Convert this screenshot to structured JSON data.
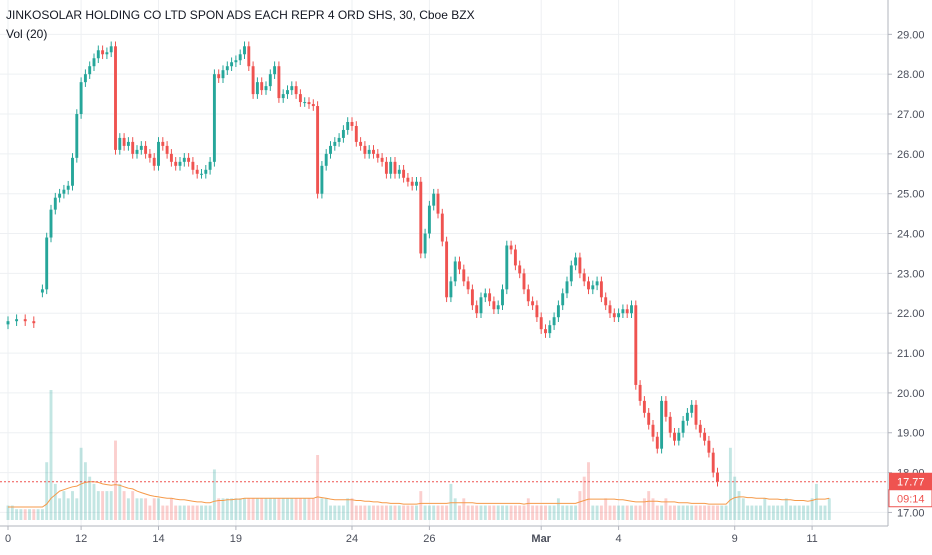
{
  "chart_data": {
    "type": "candlestick",
    "title": "JINKOSOLAR HOLDING CO LTD SPON ADS EACH REPR 4 ORD SHS, 30, Cboe BZX",
    "indicator_label": "Vol (20)",
    "colors": {
      "up": "#26a69a",
      "down": "#ef5350",
      "ma": "#f59a4a",
      "current_price_line": "#ef5350"
    },
    "ylim": [
      16.85,
      29.35
    ],
    "y_ticks": [
      "17.00",
      "18.00",
      "19.00",
      "20.00",
      "21.00",
      "22.00",
      "23.00",
      "24.00",
      "25.00",
      "26.00",
      "27.00",
      "28.00",
      "29.00"
    ],
    "x_ticks": [
      {
        "label": "0",
        "bar": 0
      },
      {
        "label": "12",
        "bar": 17
      },
      {
        "label": "14",
        "bar": 35
      },
      {
        "label": "19",
        "bar": 53
      },
      {
        "label": "24",
        "bar": 80
      },
      {
        "label": "26",
        "bar": 98
      },
      {
        "label": "Mar",
        "bar": 124
      },
      {
        "label": "4",
        "bar": 142
      },
      {
        "label": "9",
        "bar": 169
      },
      {
        "label": "11",
        "bar": 187
      }
    ],
    "current_price_label": "17.77",
    "current_price_value": 17.77,
    "countdown_label": "09:14",
    "series": [
      {
        "segment": 1,
        "points": [
          [
            0,
            21.8
          ],
          [
            2,
            21.85
          ],
          [
            4,
            21.8
          ],
          [
            6,
            21.75
          ]
        ]
      },
      {
        "segment": 2,
        "points": [
          [
            8,
            22.6
          ],
          [
            9,
            23.9
          ],
          [
            10,
            24.6
          ],
          [
            11,
            24.9
          ],
          [
            12,
            25.0
          ],
          [
            13,
            25.1
          ],
          [
            14,
            25.2
          ],
          [
            15,
            25.9
          ],
          [
            16,
            27.0
          ],
          [
            17,
            27.8
          ],
          [
            18,
            28.0
          ],
          [
            19,
            28.2
          ],
          [
            20,
            28.4
          ],
          [
            21,
            28.6
          ],
          [
            22,
            28.5
          ],
          [
            23,
            28.55
          ],
          [
            24,
            28.7
          ],
          [
            25,
            26.1
          ],
          [
            26,
            26.4
          ],
          [
            27,
            26.2
          ],
          [
            28,
            26.3
          ],
          [
            29,
            26.0
          ],
          [
            30,
            26.1
          ],
          [
            31,
            26.2
          ],
          [
            32,
            26.0
          ],
          [
            33,
            25.9
          ],
          [
            34,
            25.7
          ],
          [
            35,
            26.3
          ],
          [
            36,
            26.2
          ],
          [
            37,
            26.0
          ],
          [
            38,
            25.8
          ],
          [
            39,
            25.7
          ],
          [
            40,
            25.8
          ],
          [
            41,
            25.9
          ],
          [
            42,
            25.8
          ],
          [
            43,
            25.6
          ],
          [
            44,
            25.5
          ],
          [
            45,
            25.5
          ],
          [
            46,
            25.6
          ],
          [
            47,
            25.8
          ],
          [
            48,
            28.0
          ],
          [
            49,
            27.9
          ],
          [
            50,
            28.1
          ],
          [
            51,
            28.2
          ],
          [
            52,
            28.3
          ],
          [
            53,
            28.35
          ],
          [
            54,
            28.5
          ],
          [
            55,
            28.7
          ],
          [
            56,
            28.2
          ],
          [
            57,
            27.5
          ],
          [
            58,
            27.8
          ],
          [
            59,
            27.6
          ],
          [
            60,
            27.7
          ],
          [
            61,
            28.0
          ],
          [
            62,
            28.2
          ],
          [
            63,
            27.4
          ],
          [
            64,
            27.5
          ],
          [
            65,
            27.6
          ],
          [
            66,
            27.7
          ],
          [
            67,
            27.5
          ],
          [
            68,
            27.3
          ],
          [
            69,
            27.3
          ],
          [
            70,
            27.25
          ],
          [
            71,
            27.2
          ],
          [
            72,
            25.0
          ],
          [
            73,
            25.7
          ],
          [
            74,
            26.0
          ],
          [
            75,
            26.2
          ],
          [
            76,
            26.3
          ],
          [
            77,
            26.4
          ],
          [
            78,
            26.6
          ],
          [
            79,
            26.8
          ],
          [
            80,
            26.7
          ],
          [
            81,
            26.3
          ],
          [
            82,
            26.2
          ],
          [
            83,
            26.0
          ],
          [
            84,
            26.1
          ],
          [
            85,
            26.0
          ],
          [
            86,
            25.9
          ],
          [
            87,
            25.8
          ],
          [
            88,
            25.5
          ],
          [
            89,
            25.8
          ],
          [
            90,
            25.5
          ],
          [
            91,
            25.6
          ],
          [
            92,
            25.4
          ],
          [
            93,
            25.3
          ],
          [
            94,
            25.2
          ],
          [
            95,
            25.3
          ],
          [
            96,
            23.5
          ],
          [
            97,
            24.0
          ],
          [
            98,
            24.7
          ],
          [
            99,
            25.0
          ],
          [
            100,
            24.5
          ],
          [
            101,
            23.8
          ],
          [
            102,
            22.4
          ],
          [
            103,
            22.8
          ],
          [
            104,
            23.3
          ],
          [
            105,
            23.1
          ],
          [
            106,
            22.8
          ],
          [
            107,
            22.6
          ],
          [
            108,
            22.2
          ],
          [
            109,
            22.0
          ],
          [
            110,
            22.4
          ],
          [
            111,
            22.5
          ],
          [
            112,
            22.3
          ],
          [
            113,
            22.1
          ],
          [
            114,
            22.2
          ],
          [
            115,
            22.6
          ],
          [
            116,
            23.7
          ],
          [
            117,
            23.6
          ],
          [
            118,
            23.2
          ],
          [
            119,
            23.0
          ],
          [
            120,
            22.6
          ],
          [
            121,
            22.3
          ],
          [
            122,
            22.2
          ],
          [
            123,
            21.9
          ],
          [
            124,
            21.6
          ],
          [
            125,
            21.5
          ],
          [
            126,
            21.7
          ],
          [
            127,
            21.9
          ],
          [
            128,
            22.2
          ],
          [
            129,
            22.5
          ],
          [
            130,
            22.8
          ],
          [
            131,
            23.2
          ],
          [
            132,
            23.4
          ],
          [
            133,
            23.0
          ],
          [
            134,
            22.8
          ],
          [
            135,
            22.6
          ],
          [
            136,
            22.7
          ],
          [
            137,
            22.8
          ],
          [
            138,
            22.4
          ],
          [
            139,
            22.2
          ],
          [
            140,
            22.0
          ],
          [
            141,
            21.9
          ],
          [
            142,
            22.0
          ],
          [
            143,
            22.1
          ],
          [
            144,
            22.0
          ],
          [
            145,
            22.2
          ],
          [
            146,
            20.2
          ],
          [
            147,
            19.8
          ],
          [
            148,
            19.5
          ],
          [
            149,
            19.2
          ],
          [
            150,
            18.9
          ],
          [
            151,
            18.6
          ],
          [
            152,
            19.8
          ],
          [
            153,
            19.4
          ],
          [
            154,
            19.0
          ],
          [
            155,
            18.8
          ],
          [
            156,
            19.0
          ],
          [
            157,
            19.3
          ],
          [
            158,
            19.5
          ],
          [
            159,
            19.7
          ],
          [
            160,
            19.2
          ],
          [
            161,
            19.0
          ],
          [
            162,
            18.8
          ],
          [
            163,
            18.5
          ],
          [
            164,
            18.0
          ],
          [
            165,
            17.77
          ]
        ]
      }
    ],
    "volume": {
      "values": [
        2,
        2,
        1.5,
        1.5,
        1.5,
        1.5,
        1.5,
        1.5,
        1.5,
        8,
        18,
        5,
        3,
        4,
        3,
        4,
        3,
        10,
        8,
        6,
        5,
        4,
        4,
        4,
        4,
        11,
        5,
        4,
        3,
        4,
        3,
        3,
        3,
        2,
        3,
        3,
        2,
        2,
        3,
        2,
        2,
        2,
        2,
        2,
        2,
        2,
        2,
        2,
        7,
        3,
        3,
        3,
        3,
        3,
        3,
        3,
        3,
        3,
        3,
        3,
        3,
        3,
        3,
        3,
        3,
        3,
        3,
        3,
        3,
        3,
        3,
        3,
        9,
        3,
        3,
        2,
        2,
        2,
        2,
        3,
        3,
        2,
        2,
        2,
        2,
        2,
        2,
        2,
        2,
        2,
        2,
        2,
        2,
        2,
        2,
        2,
        4,
        2,
        2,
        2,
        2,
        2,
        2,
        5,
        3,
        2,
        3,
        2,
        2,
        2,
        2,
        2,
        2,
        2,
        2,
        2,
        2,
        2,
        2,
        2,
        2,
        3,
        2,
        2,
        2,
        2,
        2,
        2,
        3,
        2,
        2,
        2,
        2,
        4,
        6,
        8,
        2,
        2,
        2,
        3,
        2,
        2,
        2,
        2,
        2,
        2,
        2,
        2,
        3,
        4,
        3,
        2,
        2,
        3,
        2,
        2,
        2,
        2,
        2,
        2,
        2,
        2,
        2,
        2,
        2,
        2,
        2,
        2,
        10,
        6,
        4,
        3,
        2,
        2,
        2,
        2,
        3,
        2,
        2,
        2,
        2,
        3,
        2,
        2,
        2,
        2,
        2,
        3,
        5,
        2,
        2,
        3
      ],
      "ma": [
        1.8,
        1.8,
        1.8,
        1.8,
        1.8,
        1.8,
        1.8,
        1.8,
        1.8,
        2.2,
        3,
        3.5,
        4,
        4.2,
        4.4,
        4.6,
        4.7,
        5,
        5.2,
        5.3,
        5.3,
        5.2,
        5,
        4.9,
        4.8,
        4.9,
        4.8,
        4.6,
        4.4,
        4.3,
        4,
        3.8,
        3.6,
        3.4,
        3.3,
        3.2,
        3.1,
        3,
        3,
        2.9,
        2.8,
        2.8,
        2.7,
        2.6,
        2.5,
        2.5,
        2.4,
        2.4,
        2.6,
        2.7,
        2.7,
        2.8,
        2.8,
        2.9,
        2.9,
        3,
        3,
        3,
        3,
        3,
        3,
        3,
        3,
        3,
        3,
        3,
        3,
        3,
        3,
        3,
        3,
        3,
        3.2,
        3.1,
        3,
        2.9,
        2.8,
        2.8,
        2.8,
        2.8,
        2.8,
        2.7,
        2.7,
        2.6,
        2.6,
        2.5,
        2.5,
        2.4,
        2.4,
        2.3,
        2.3,
        2.3,
        2.2,
        2.2,
        2.2,
        2.2,
        2.3,
        2.3,
        2.3,
        2.3,
        2.3,
        2.3,
        2.3,
        2.4,
        2.4,
        2.4,
        2.4,
        2.4,
        2.4,
        2.3,
        2.3,
        2.3,
        2.3,
        2.3,
        2.3,
        2.3,
        2.3,
        2.3,
        2.3,
        2.3,
        2.2,
        2.3,
        2.3,
        2.3,
        2.3,
        2.3,
        2.3,
        2.3,
        2.3,
        2.3,
        2.3,
        2.3,
        2.3,
        2.5,
        2.7,
        2.9,
        2.9,
        2.9,
        2.9,
        2.9,
        2.9,
        2.9,
        2.8,
        2.8,
        2.7,
        2.6,
        2.5,
        2.5,
        2.5,
        2.6,
        2.6,
        2.6,
        2.5,
        2.5,
        2.5,
        2.5,
        2.4,
        2.4,
        2.4,
        2.3,
        2.3,
        2.3,
        2.3,
        2.2,
        2.2,
        2.2,
        2.2,
        2.2,
        2.8,
        3.1,
        3.2,
        3.2,
        3.1,
        3.1,
        3,
        3,
        3,
        2.9,
        2.9,
        2.9,
        2.8,
        2.8,
        2.8,
        2.7,
        2.7,
        2.7,
        2.6,
        2.7,
        2.9,
        2.9,
        2.9,
        3
      ]
    }
  }
}
